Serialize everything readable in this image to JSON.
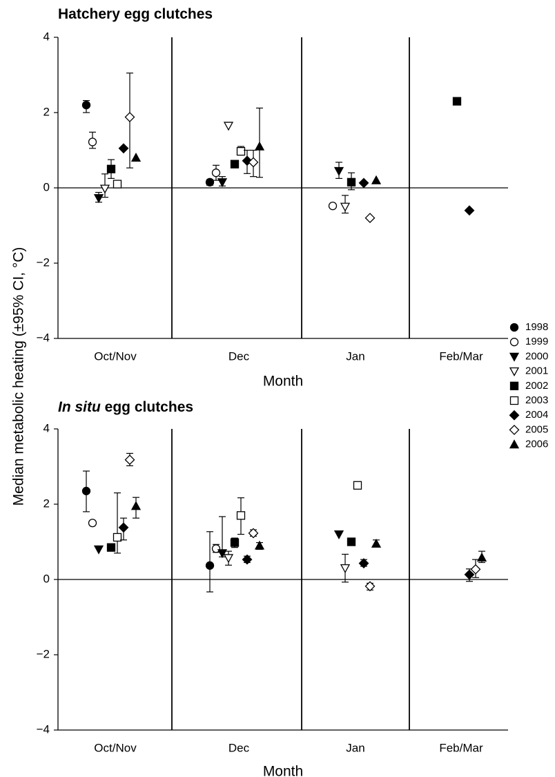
{
  "ylabel": "Median metabolic heating (±95% CI, °C)",
  "legend": {
    "placement": "right-middle",
    "entries": [
      "1998",
      "1999",
      "2000",
      "2001",
      "2002",
      "2003",
      "2004",
      "2005",
      "2006"
    ]
  },
  "series_markers": {
    "1998": "filled-circle",
    "1999": "open-circle",
    "2000": "filled-triangle-down",
    "2001": "open-triangle-down",
    "2002": "filled-square",
    "2003": "open-square",
    "2004": "filled-diamond",
    "2005": "open-diamond",
    "2006": "filled-triangle-up"
  },
  "chart_data": [
    {
      "type": "scatter",
      "title": "Hatchery egg clutches",
      "title_prefix_italic": "",
      "title_rest": "Hatchery egg clutches",
      "xlabel": "Month",
      "categories": [
        "Oct/Nov",
        "Dec",
        "Jan",
        "Feb/Mar"
      ],
      "ylim": [
        -4,
        4
      ],
      "yticks": [
        4,
        2,
        0,
        -2,
        -4
      ],
      "ytick_labels": [
        "4",
        "2",
        "0",
        "−2",
        "−4"
      ],
      "zero_line": true,
      "points": [
        {
          "series": "1998",
          "category": "Oct/Nov",
          "y": 2.2,
          "lo": 2.0,
          "hi": 2.32
        },
        {
          "series": "1999",
          "category": "Oct/Nov",
          "y": 1.22,
          "lo": 1.05,
          "hi": 1.48
        },
        {
          "series": "2000",
          "category": "Oct/Nov",
          "y": -0.27,
          "lo": -0.38,
          "hi": -0.12
        },
        {
          "series": "2001",
          "category": "Oct/Nov",
          "y": -0.02,
          "lo": -0.25,
          "hi": 0.37
        },
        {
          "series": "2002",
          "category": "Oct/Nov",
          "y": 0.5,
          "lo": 0.25,
          "hi": 0.75
        },
        {
          "series": "2003",
          "category": "Oct/Nov",
          "y": 0.1
        },
        {
          "series": "2004",
          "category": "Oct/Nov",
          "y": 1.05
        },
        {
          "series": "2005",
          "category": "Oct/Nov",
          "y": 1.88,
          "lo": 0.53,
          "hi": 3.05
        },
        {
          "series": "2006",
          "category": "Oct/Nov",
          "y": 0.8
        },
        {
          "series": "1998",
          "category": "Dec",
          "y": 0.15,
          "lo": 0.07,
          "hi": 0.22
        },
        {
          "series": "1999",
          "category": "Dec",
          "y": 0.4,
          "lo": 0.2,
          "hi": 0.6
        },
        {
          "series": "2000",
          "category": "Dec",
          "y": 0.15,
          "lo": 0.05,
          "hi": 0.3
        },
        {
          "series": "2001",
          "category": "Dec",
          "y": 1.65
        },
        {
          "series": "2002",
          "category": "Dec",
          "y": 0.63
        },
        {
          "series": "2003",
          "category": "Dec",
          "y": 0.97,
          "lo": 0.88,
          "hi": 1.1
        },
        {
          "series": "2004",
          "category": "Dec",
          "y": 0.72,
          "lo": 0.38,
          "hi": 1.0
        },
        {
          "series": "2005",
          "category": "Dec",
          "y": 0.68,
          "lo": 0.3,
          "hi": 1.0
        },
        {
          "series": "2006",
          "category": "Dec",
          "y": 1.1,
          "lo": 0.28,
          "hi": 2.12
        },
        {
          "series": "1999",
          "category": "Jan",
          "y": -0.48
        },
        {
          "series": "2000",
          "category": "Jan",
          "y": 0.45,
          "lo": 0.25,
          "hi": 0.68
        },
        {
          "series": "2001",
          "category": "Jan",
          "y": -0.5,
          "lo": -0.67,
          "hi": -0.2
        },
        {
          "series": "2002",
          "category": "Jan",
          "y": 0.15,
          "lo": -0.05,
          "hi": 0.4
        },
        {
          "series": "2004",
          "category": "Jan",
          "y": 0.13
        },
        {
          "series": "2005",
          "category": "Jan",
          "y": -0.8
        },
        {
          "series": "2006",
          "category": "Jan",
          "y": 0.2
        },
        {
          "series": "2002",
          "category": "Feb/Mar",
          "y": 2.3
        },
        {
          "series": "2004",
          "category": "Feb/Mar",
          "y": -0.6
        }
      ]
    },
    {
      "type": "scatter",
      "title": "In situ egg clutches",
      "title_prefix_italic": "In situ",
      "title_rest": " egg clutches",
      "xlabel": "Month",
      "categories": [
        "Oct/Nov",
        "Dec",
        "Jan",
        "Feb/Mar"
      ],
      "ylim": [
        -4,
        4
      ],
      "yticks": [
        4,
        2,
        0,
        -2,
        -4
      ],
      "ytick_labels": [
        "4",
        "2",
        "0",
        "−2",
        "−4"
      ],
      "zero_line": true,
      "points": [
        {
          "series": "1998",
          "category": "Oct/Nov",
          "y": 2.35,
          "lo": 1.8,
          "hi": 2.88
        },
        {
          "series": "1999",
          "category": "Oct/Nov",
          "y": 1.5
        },
        {
          "series": "2000",
          "category": "Oct/Nov",
          "y": 0.8
        },
        {
          "series": "2002",
          "category": "Oct/Nov",
          "y": 0.85
        },
        {
          "series": "2003",
          "category": "Oct/Nov",
          "y": 1.12,
          "lo": 0.7,
          "hi": 2.3
        },
        {
          "series": "2004",
          "category": "Oct/Nov",
          "y": 1.38,
          "lo": 1.05,
          "hi": 1.63
        },
        {
          "series": "2005",
          "category": "Oct/Nov",
          "y": 3.18,
          "lo": 3.02,
          "hi": 3.35
        },
        {
          "series": "2006",
          "category": "Oct/Nov",
          "y": 1.95,
          "lo": 1.63,
          "hi": 2.18
        },
        {
          "series": "1998",
          "category": "Dec",
          "y": 0.37,
          "lo": -0.33,
          "hi": 1.27
        },
        {
          "series": "1999",
          "category": "Dec",
          "y": 0.82,
          "lo": 0.72,
          "hi": 0.93
        },
        {
          "series": "2000",
          "category": "Dec",
          "y": 0.7,
          "lo": 0.6,
          "hi": 1.67
        },
        {
          "series": "2001",
          "category": "Dec",
          "y": 0.57,
          "lo": 0.38,
          "hi": 0.75
        },
        {
          "series": "2002",
          "category": "Dec",
          "y": 0.98,
          "lo": 0.85,
          "hi": 1.1
        },
        {
          "series": "2003",
          "category": "Dec",
          "y": 1.7,
          "lo": 1.2,
          "hi": 2.17
        },
        {
          "series": "2004",
          "category": "Dec",
          "y": 0.53,
          "lo": 0.45,
          "hi": 0.62
        },
        {
          "series": "2005",
          "category": "Dec",
          "y": 1.23,
          "lo": 1.15,
          "hi": 1.32
        },
        {
          "series": "2006",
          "category": "Dec",
          "y": 0.9,
          "lo": 0.8,
          "hi": 0.98
        },
        {
          "series": "2000",
          "category": "Jan",
          "y": 1.2
        },
        {
          "series": "2001",
          "category": "Jan",
          "y": 0.3,
          "lo": -0.07,
          "hi": 0.67
        },
        {
          "series": "2002",
          "category": "Jan",
          "y": 1.0
        },
        {
          "series": "2003",
          "category": "Jan",
          "y": 2.5
        },
        {
          "series": "2004",
          "category": "Jan",
          "y": 0.43,
          "lo": 0.35,
          "hi": 0.53
        },
        {
          "series": "2005",
          "category": "Jan",
          "y": -0.18,
          "lo": -0.28,
          "hi": -0.1
        },
        {
          "series": "2006",
          "category": "Jan",
          "y": 0.95,
          "lo": 0.87,
          "hi": 1.05
        },
        {
          "series": "2004",
          "category": "Feb/Mar",
          "y": 0.13,
          "lo": -0.05,
          "hi": 0.28
        },
        {
          "series": "2005",
          "category": "Feb/Mar",
          "y": 0.27,
          "lo": 0.05,
          "hi": 0.53
        },
        {
          "series": "2006",
          "category": "Feb/Mar",
          "y": 0.58,
          "lo": 0.45,
          "hi": 0.75
        }
      ]
    }
  ]
}
